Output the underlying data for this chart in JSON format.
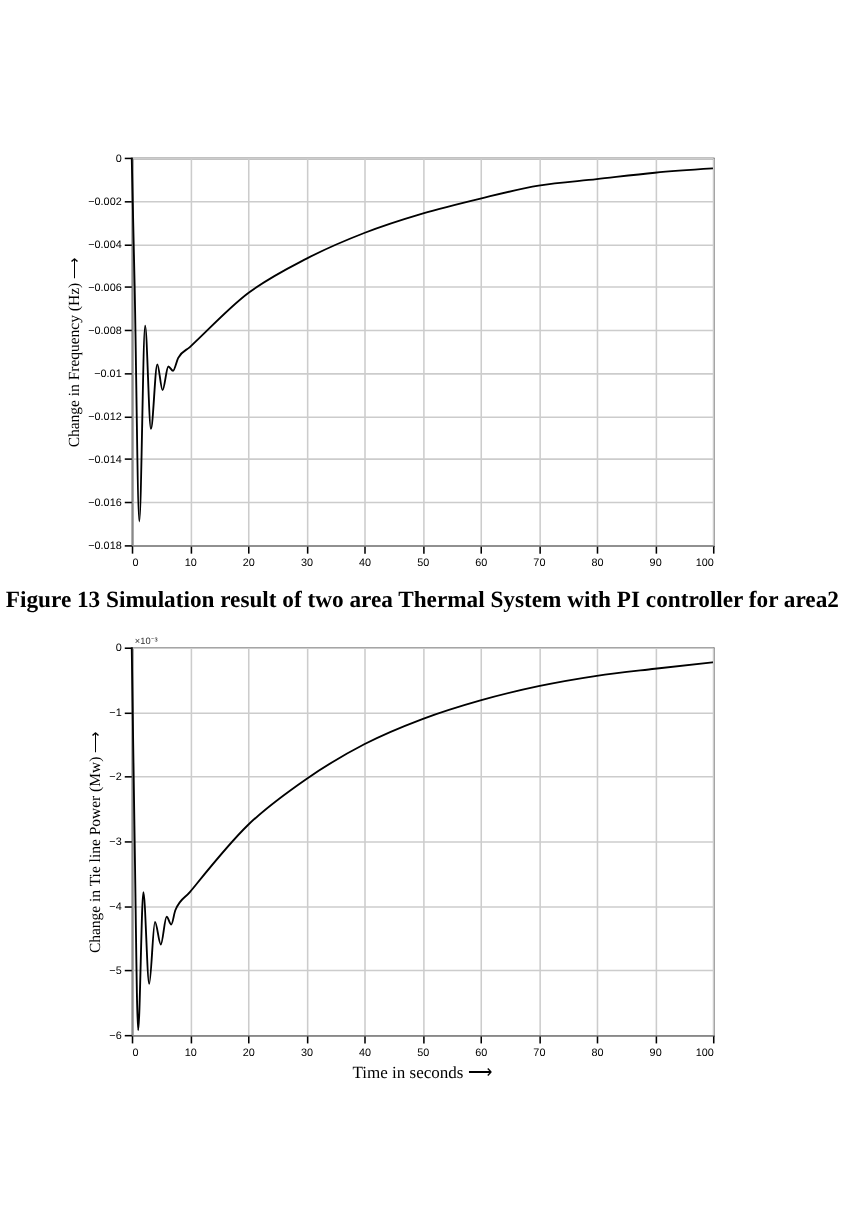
{
  "chart_data": [
    {
      "type": "line",
      "ylabel": "Change in Frequency (Hz) ⟶",
      "annotations": [
        "Figure 13 Simulation result of two area Thermal System with PI controller for area2"
      ],
      "x": [
        0,
        0.5,
        1.3,
        2.3,
        3.3,
        4.4,
        5.3,
        6.3,
        7.1,
        8,
        10,
        20,
        30,
        40,
        50,
        60,
        70,
        80,
        90,
        100
      ],
      "series": [
        {
          "color": "#000000",
          "values": [
            0,
            -0.006,
            -0.0169,
            -0.0078,
            -0.0126,
            -0.0096,
            -0.0108,
            -0.0097,
            -0.0099,
            -0.0093,
            -0.0088,
            -0.0063,
            -0.0047,
            -0.0035,
            -0.0026,
            -0.0019,
            -0.0013,
            -0.001,
            -0.0007,
            -0.0005
          ]
        }
      ],
      "xlim": [
        0,
        100
      ],
      "xticks": [
        0,
        10,
        20,
        30,
        40,
        50,
        60,
        70,
        80,
        90,
        100
      ],
      "ylim": [
        -0.018,
        0
      ],
      "yticks": [
        -0.018,
        -0.016,
        -0.014,
        -0.012,
        -0.01,
        -0.008,
        -0.006,
        -0.004,
        -0.002,
        0
      ],
      "grid": true,
      "marker": "none",
      "line_style": "solid"
    },
    {
      "type": "line",
      "xlabel": "Time in seconds ⟶",
      "ylabel": "Change in Tie line Power (Mw) ⟶",
      "annotations": [
        "×10⁻³"
      ],
      "x": [
        0,
        0.5,
        1.1,
        2.0,
        3.0,
        4.0,
        5.0,
        6.0,
        6.8,
        7.5,
        10,
        20,
        30,
        40,
        50,
        60,
        70,
        80,
        90,
        100
      ],
      "series": [
        {
          "color": "#000000",
          "values": [
            0,
            -3.0,
            -5.93,
            -3.79,
            -5.21,
            -4.25,
            -4.6,
            -4.17,
            -4.29,
            -4.07,
            -3.79,
            -2.75,
            -2.04,
            -1.5,
            -1.11,
            -0.82,
            -0.6,
            -0.44,
            -0.33,
            -0.23
          ]
        }
      ],
      "xlim": [
        0,
        100
      ],
      "xticks": [
        0,
        10,
        20,
        30,
        40,
        50,
        60,
        70,
        80,
        90,
        100
      ],
      "ylim": [
        -6,
        0
      ],
      "yticks": [
        -6,
        -5,
        -4,
        -3,
        -2,
        -1,
        0
      ],
      "grid": true,
      "marker": "none",
      "line_style": "solid"
    }
  ]
}
